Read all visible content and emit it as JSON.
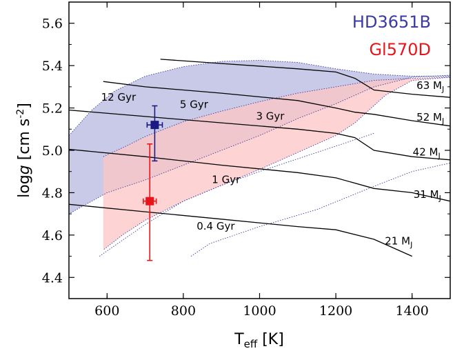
{
  "chart_data": {
    "type": "line",
    "xlabel": "T",
    "xlabel_sub": "eff",
    "xlabel_unit": " [K]",
    "ylabel": "log",
    "ylabel_g": "g",
    "ylabel_unit": " [cm s",
    "ylabel_exp": "-2",
    "ylabel_close": "]",
    "xlim": [
      500,
      1500
    ],
    "ylim": [
      4.3,
      5.7
    ],
    "x_ticks": [
      600,
      800,
      1000,
      1200,
      1400
    ],
    "y_ticks": [
      4.4,
      4.6,
      4.8,
      5.0,
      5.2,
      5.4,
      5.6
    ],
    "grid": false,
    "legend_position": "top-right",
    "colors": {
      "blue": "#3a3aa0",
      "red": "#e8141a",
      "blue_fill": "#c9c9e8",
      "red_fill": "#fcc6c6",
      "overlap_fill": "#d2a8c8"
    },
    "legend": [
      {
        "name": "HD3651B",
        "color": "#3a3aa0"
      },
      {
        "name": "Gl570D",
        "color": "#e8141a"
      }
    ],
    "mass_tracks": [
      {
        "name": "21 MJ",
        "label": "21 M",
        "sub": "J",
        "x": [
          500,
          700,
          900,
          1100,
          1200,
          1300,
          1400
        ],
        "y": [
          4.745,
          4.71,
          4.675,
          4.64,
          4.625,
          4.58,
          4.5
        ]
      },
      {
        "name": "31 MJ",
        "label": "31 M",
        "sub": "J",
        "x": [
          500,
          700,
          900,
          1100,
          1200,
          1300,
          1400,
          1500
        ],
        "y": [
          5.005,
          4.97,
          4.93,
          4.895,
          4.87,
          4.82,
          4.8,
          4.76
        ]
      },
      {
        "name": "42 MJ",
        "label": "42 M",
        "sub": "J",
        "x": [
          500,
          700,
          900,
          1100,
          1200,
          1250,
          1300,
          1400,
          1500
        ],
        "y": [
          5.19,
          5.16,
          5.13,
          5.1,
          5.08,
          5.06,
          5.0,
          4.97,
          4.955
        ]
      },
      {
        "name": "52 MJ",
        "label": "52 M",
        "sub": "J",
        "x": [
          590,
          700,
          900,
          1100,
          1200,
          1250,
          1300,
          1400,
          1500
        ],
        "y": [
          5.325,
          5.3,
          5.27,
          5.235,
          5.2,
          5.18,
          5.17,
          5.14,
          5.115
        ]
      },
      {
        "name": "63 MJ",
        "label": "63 M",
        "sub": "J",
        "x": [
          740,
          900,
          1100,
          1200,
          1250,
          1300,
          1400,
          1500
        ],
        "y": [
          5.43,
          5.41,
          5.385,
          5.37,
          5.34,
          5.285,
          5.265,
          5.25
        ]
      }
    ],
    "isochrone_labels": [
      {
        "text": "12 Gyr",
        "x": 630,
        "y": 5.235
      },
      {
        "text": "5 Gyr",
        "x": 828,
        "y": 5.2
      },
      {
        "text": "3 Gyr",
        "x": 1028,
        "y": 5.145
      },
      {
        "text": "1 Gyr",
        "x": 912,
        "y": 4.845
      },
      {
        "text": "0.4 Gyr",
        "x": 885,
        "y": 4.625
      }
    ],
    "regions": [
      {
        "name": "HD3651B",
        "color": "#3a3aa0",
        "x_upper": [
          500,
          560,
          620,
          700,
          800,
          900,
          1000,
          1100,
          1200,
          1300,
          1400,
          1500
        ],
        "y_upper": [
          5.07,
          5.19,
          5.28,
          5.35,
          5.395,
          5.42,
          5.425,
          5.415,
          5.385,
          5.36,
          5.35,
          5.35
        ],
        "x_lower": [
          1500,
          1400,
          1300,
          1200,
          1100,
          1000,
          900,
          800,
          700,
          600,
          500
        ],
        "y_lower": [
          5.355,
          5.345,
          5.3,
          5.22,
          5.15,
          5.07,
          5.0,
          4.93,
          4.86,
          4.8,
          4.7
        ]
      },
      {
        "name": "Gl570D",
        "color": "#e8141a",
        "x_upper": [
          590,
          650,
          700,
          800,
          900,
          1000,
          1100,
          1200,
          1300,
          1400,
          1500
        ],
        "y_upper": [
          4.97,
          5.02,
          5.065,
          5.135,
          5.185,
          5.23,
          5.27,
          5.3,
          5.33,
          5.34,
          5.345
        ],
        "x_lower": [
          1500,
          1400,
          1330,
          1250,
          1200,
          1100,
          1000,
          900,
          800,
          700,
          640,
          590
        ],
        "y_lower": [
          5.345,
          5.33,
          5.26,
          5.13,
          5.07,
          4.99,
          4.91,
          4.835,
          4.76,
          4.67,
          4.6,
          4.53
        ]
      }
    ],
    "extra_contours": [
      {
        "x": [
          580,
          620,
          700,
          800,
          900,
          1000,
          1100,
          1200,
          1300
        ],
        "y": [
          4.5,
          4.55,
          4.65,
          4.76,
          4.835,
          4.9,
          4.96,
          5.02,
          5.08
        ]
      },
      {
        "x": [
          820,
          870,
          1000,
          1150,
          1300,
          1400,
          1500
        ],
        "y": [
          4.5,
          4.56,
          4.64,
          4.72,
          4.83,
          4.9,
          4.94
        ]
      }
    ],
    "data_points": [
      {
        "name": "HD3651B",
        "x": 725,
        "y": 5.12,
        "xerr": 20,
        "yerr_low": 0.17,
        "yerr_high": 0.09,
        "color": "#1a1a80"
      },
      {
        "name": "Gl570D",
        "x": 712,
        "y": 4.76,
        "xerr": 17,
        "yerr_low": 0.28,
        "yerr_high": 0.27,
        "color": "#e8141a"
      }
    ]
  }
}
